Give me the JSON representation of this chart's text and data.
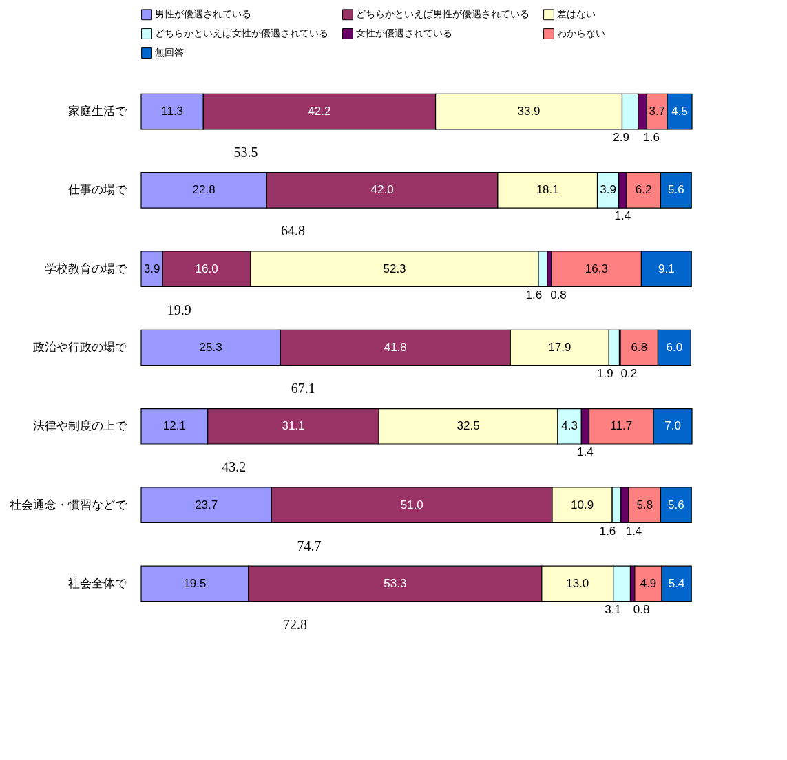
{
  "chart_data": {
    "type": "bar",
    "orientation": "horizontal",
    "stacked": true,
    "legend": "top",
    "tick_labels": "y",
    "categories": [
      "家庭生活で",
      "仕事の場で",
      "学校教育の場で",
      "政治や行政の場で",
      "法律や制度の上で",
      "社会通念・慣習などで",
      "社会全体で"
    ],
    "series": [
      {
        "name": "男性が優遇されている",
        "color": "#9999ff",
        "values": [
          11.3,
          22.8,
          3.9,
          25.3,
          12.1,
          23.7,
          19.5
        ],
        "value_labels": [
          "11.3",
          "22.8",
          "3.9",
          "25.3",
          "12.1",
          "23.7",
          "19.5"
        ]
      },
      {
        "name": "どちらかといえば男性が優遇されている",
        "color": "#993366",
        "values": [
          42.2,
          42.0,
          16.0,
          41.8,
          31.1,
          51.0,
          53.3
        ],
        "value_labels": [
          "42.2",
          "42.0",
          "16.0",
          "41.8",
          "31.1",
          "51.0",
          "53.3"
        ]
      },
      {
        "name": "差はない",
        "color": "#ffffcc",
        "values": [
          33.9,
          18.1,
          52.3,
          17.9,
          32.5,
          10.9,
          13.0
        ],
        "value_labels": [
          "33.9",
          "18.1",
          "52.3",
          "17.9",
          "32.5",
          "10.9",
          "13.0"
        ]
      },
      {
        "name": "どちらかといえば女性が優遇されている",
        "color": "#ccffff",
        "values": [
          2.9,
          3.9,
          1.6,
          1.9,
          4.3,
          1.6,
          3.1
        ],
        "value_labels": [
          "2.9",
          "3.9",
          "1.6",
          "1.9",
          "4.3",
          "1.6",
          "3.1"
        ]
      },
      {
        "name": "女性が優遇されている",
        "color": "#660066",
        "values": [
          1.6,
          1.4,
          0.8,
          0.2,
          1.4,
          1.4,
          0.8
        ],
        "value_labels": [
          "1.6",
          "1.4",
          "0.8",
          "0.2",
          "1.4",
          "1.4",
          "0.8"
        ]
      },
      {
        "name": "わからない",
        "color": "#ff8080",
        "values": [
          3.7,
          6.2,
          16.3,
          6.8,
          11.7,
          5.8,
          4.9
        ],
        "value_labels": [
          "3.7",
          "6.2",
          "16.3",
          "6.8",
          "11.7",
          "5.8",
          "4.9"
        ]
      },
      {
        "name": "無回答",
        "color": "#0066cc",
        "values": [
          4.5,
          5.6,
          9.1,
          6.0,
          7.0,
          5.6,
          5.4
        ],
        "value_labels": [
          "4.5",
          "5.6",
          "9.1",
          "6.0",
          "7.0",
          "5.6",
          "5.4"
        ]
      }
    ],
    "annotations": [
      "53.5",
      "64.8",
      "19.9",
      "67.1",
      "43.2",
      "74.7",
      "72.8"
    ]
  }
}
